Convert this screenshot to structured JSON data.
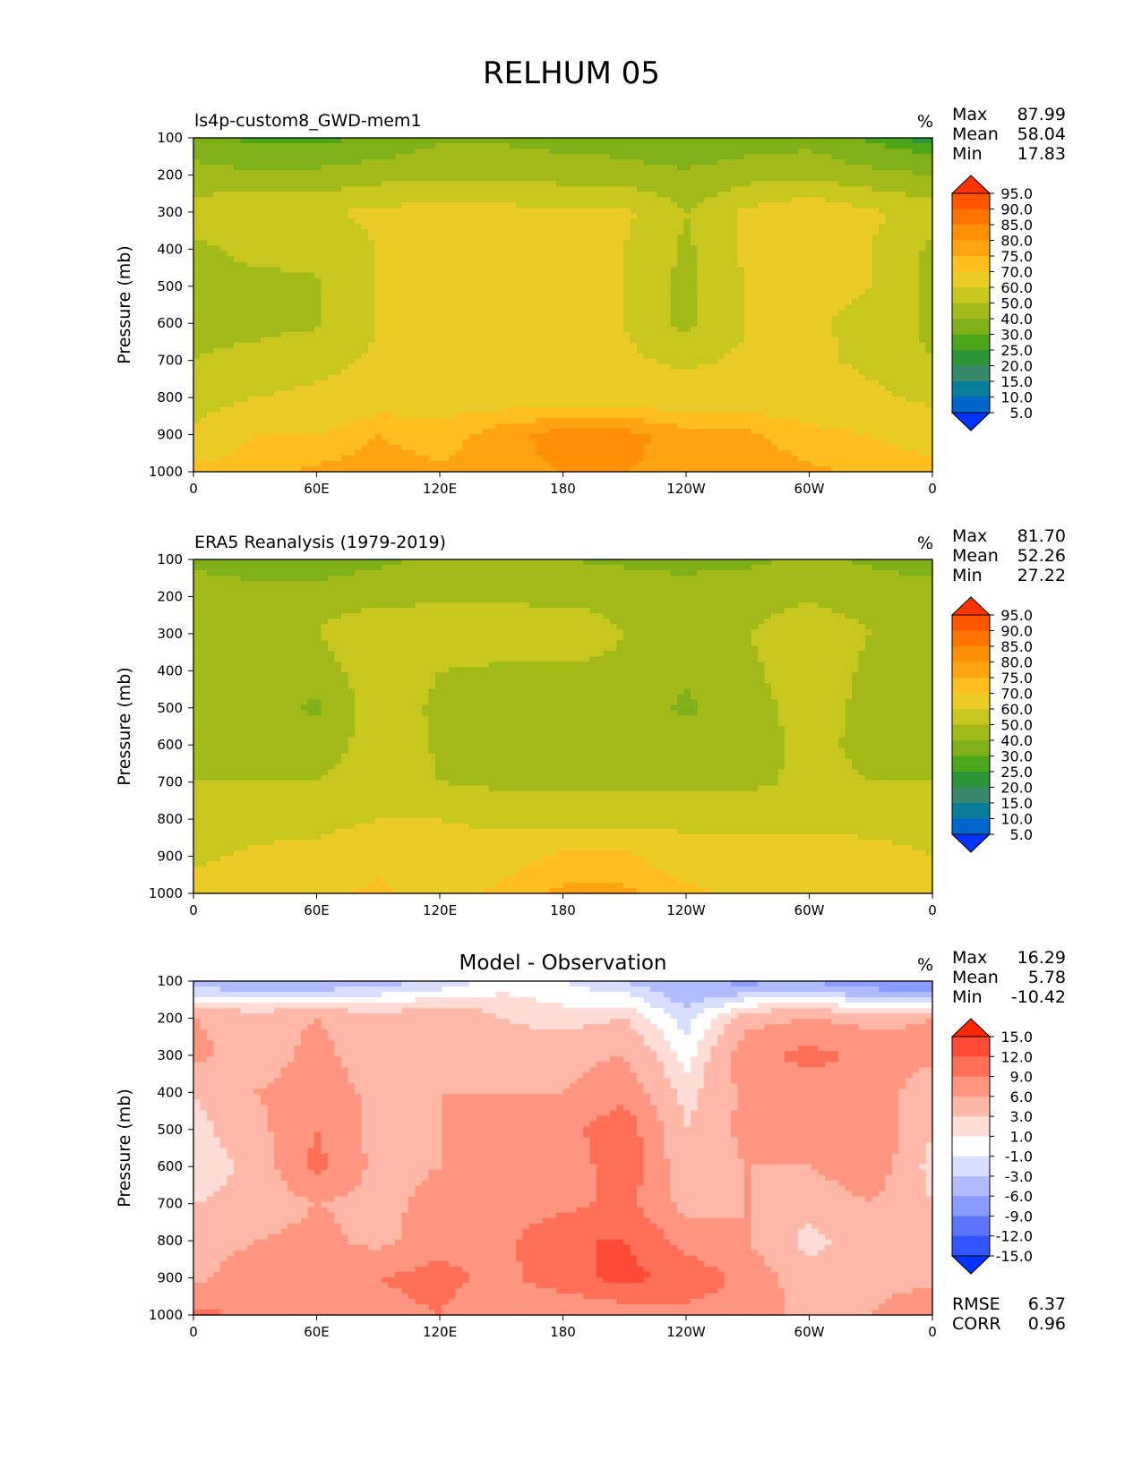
{
  "figure": {
    "title": "RELHUM 05",
    "ylabel": "Pressure (mb)",
    "units": "%"
  },
  "panels": [
    {
      "id": "model",
      "title": "ls4p-custom8_GWD-mem1",
      "stats": [
        {
          "label": "Max",
          "value": "87.99"
        },
        {
          "label": "Mean",
          "value": "58.04"
        },
        {
          "label": "Min",
          "value": "17.83"
        }
      ],
      "colorbar": "abs"
    },
    {
      "id": "obs",
      "title": "ERA5 Reanalysis (1979-2019)",
      "stats": [
        {
          "label": "Max",
          "value": "81.70"
        },
        {
          "label": "Mean",
          "value": "52.26"
        },
        {
          "label": "Min",
          "value": "27.22"
        }
      ],
      "colorbar": "abs"
    },
    {
      "id": "diff",
      "title": "Model - Observation",
      "stats": [
        {
          "label": "Max",
          "value": "16.29"
        },
        {
          "label": "Mean",
          "value": "5.78"
        },
        {
          "label": "Min",
          "value": "-10.42"
        }
      ],
      "extra_stats": [
        {
          "label": "RMSE",
          "value": "6.37"
        },
        {
          "label": "CORR",
          "value": "0.96"
        }
      ],
      "colorbar": "diff"
    }
  ],
  "colorbars": {
    "abs": {
      "labels": [
        "95.0",
        "90.0",
        "85.0",
        "80.0",
        "75.0",
        "70.0",
        "60.0",
        "50.0",
        "40.0",
        "30.0",
        "25.0",
        "20.0",
        "15.0",
        "10.0",
        "5.0"
      ],
      "colors": [
        "#ff3300",
        "#ff5500",
        "#ff7400",
        "#ff9005",
        "#ffa312",
        "#ffbf1f",
        "#ebcc26",
        "#c7c71f",
        "#a3bb19",
        "#7fb019",
        "#4da619",
        "#2e9438",
        "#38876b",
        "#087d99",
        "#0066cc",
        "#0033ff"
      ]
    },
    "diff": {
      "labels": [
        "15.0",
        "12.0",
        "9.0",
        "6.0",
        "3.0",
        "1.0",
        "-1.0",
        "-3.0",
        "-6.0",
        "-9.0",
        "-12.0",
        "-15.0"
      ],
      "colors": [
        "#ff2600",
        "#ff4a36",
        "#ff6e57",
        "#ff9480",
        "#ffb8a8",
        "#ffdcd5",
        "#ffffff",
        "#d8deff",
        "#b0bcff",
        "#8a9cff",
        "#5c74ff",
        "#3355ff",
        "#0033ff"
      ]
    }
  },
  "chart_data": [
    {
      "type": "heatmap",
      "title": "ls4p-custom8_GWD-mem1",
      "x_tick_labels": [
        "0",
        "60E",
        "120E",
        "180",
        "120W",
        "60W",
        "0"
      ],
      "y_tick_labels": [
        "100",
        "200",
        "300",
        "400",
        "500",
        "600",
        "700",
        "800",
        "900",
        "1000"
      ],
      "xlim": [
        0,
        360
      ],
      "ylim": [
        1000,
        100
      ],
      "x": [
        0,
        30,
        60,
        90,
        120,
        150,
        180,
        210,
        240,
        270,
        300,
        330,
        360
      ],
      "y": [
        100,
        200,
        300,
        400,
        500,
        600,
        700,
        800,
        900,
        1000
      ],
      "values": [
        [
          33,
          28,
          27,
          32,
          38,
          38,
          36,
          34,
          30,
          34,
          36,
          28,
          22
        ],
        [
          44,
          42,
          43,
          46,
          48,
          48,
          46,
          45,
          42,
          46,
          48,
          43,
          40
        ],
        [
          55,
          58,
          58,
          63,
          63,
          63,
          62,
          62,
          50,
          62,
          68,
          62,
          55
        ],
        [
          48,
          52,
          52,
          60,
          62,
          62,
          61,
          60,
          48,
          62,
          65,
          60,
          48
        ],
        [
          47,
          48,
          49,
          60,
          62,
          62,
          61,
          60,
          47,
          61,
          62,
          60,
          47
        ],
        [
          48,
          48,
          49,
          60,
          63,
          62,
          61,
          60,
          47,
          60,
          61,
          58,
          47
        ],
        [
          50,
          52,
          56,
          62,
          63,
          64,
          63,
          62,
          58,
          62,
          62,
          58,
          50
        ],
        [
          55,
          60,
          63,
          66,
          67,
          66,
          67,
          66,
          65,
          66,
          65,
          62,
          58
        ],
        [
          62,
          70,
          70,
          75,
          72,
          78,
          82,
          82,
          77,
          76,
          72,
          70,
          66
        ],
        [
          72,
          74,
          76,
          78,
          76,
          79,
          80,
          80,
          79,
          78,
          76,
          74,
          73
        ]
      ],
      "zlabel": "%"
    },
    {
      "type": "heatmap",
      "title": "ERA5 Reanalysis (1979-2019)",
      "x_tick_labels": [
        "0",
        "60E",
        "120E",
        "180",
        "120W",
        "60W",
        "0"
      ],
      "y_tick_labels": [
        "100",
        "200",
        "300",
        "400",
        "500",
        "600",
        "700",
        "800",
        "900",
        "1000"
      ],
      "xlim": [
        0,
        360
      ],
      "ylim": [
        1000,
        100
      ],
      "x": [
        0,
        30,
        60,
        90,
        120,
        150,
        180,
        210,
        240,
        270,
        300,
        330,
        360
      ],
      "y": [
        100,
        200,
        300,
        400,
        500,
        600,
        700,
        800,
        900,
        1000
      ],
      "values": [
        [
          38,
          34,
          33,
          38,
          42,
          42,
          40,
          38,
          36,
          38,
          42,
          38,
          34
        ],
        [
          45,
          45,
          46,
          47,
          48,
          48,
          47,
          47,
          46,
          47,
          49,
          47,
          46
        ],
        [
          50,
          50,
          50,
          58,
          58,
          58,
          58,
          50,
          50,
          50,
          55,
          50,
          50
        ],
        [
          48,
          47,
          45,
          57,
          50,
          48,
          48,
          48,
          42,
          48,
          56,
          48,
          47
        ],
        [
          48,
          47,
          38,
          56,
          48,
          48,
          48,
          47,
          38,
          47,
          53,
          48,
          47
        ],
        [
          48,
          47,
          45,
          55,
          49,
          48,
          48,
          47,
          45,
          47,
          52,
          48,
          47
        ],
        [
          50,
          50,
          50,
          55,
          50,
          48,
          47,
          47,
          47,
          48,
          52,
          50,
          50
        ],
        [
          55,
          56,
          57,
          60,
          60,
          58,
          57,
          57,
          57,
          57,
          57,
          56,
          55
        ],
        [
          58,
          62,
          63,
          67,
          62,
          66,
          72,
          72,
          65,
          66,
          65,
          64,
          60
        ],
        [
          65,
          66,
          67,
          72,
          66,
          72,
          76,
          76,
          72,
          68,
          70,
          66,
          65
        ]
      ],
      "zlabel": "%"
    },
    {
      "type": "heatmap",
      "title": "Model - Observation",
      "x_tick_labels": [
        "0",
        "60E",
        "120E",
        "180",
        "120W",
        "60W",
        "0"
      ],
      "y_tick_labels": [
        "100",
        "200",
        "300",
        "400",
        "500",
        "600",
        "700",
        "800",
        "900",
        "1000"
      ],
      "xlim": [
        0,
        360
      ],
      "ylim": [
        1000,
        100
      ],
      "x": [
        0,
        30,
        60,
        90,
        120,
        150,
        180,
        210,
        240,
        270,
        300,
        330,
        360
      ],
      "y": [
        100,
        200,
        300,
        400,
        500,
        600,
        700,
        800,
        900,
        1000
      ],
      "values": [
        [
          -5,
          -6,
          -6,
          -4,
          -3,
          0,
          -1,
          -3,
          -6,
          -7,
          -6,
          -9,
          -10
        ],
        [
          6,
          5,
          6,
          4,
          6,
          3,
          2,
          3,
          -2,
          5,
          6,
          5,
          6
        ],
        [
          7,
          4,
          7,
          4,
          5,
          4,
          5,
          6,
          0,
          8,
          10,
          8,
          7
        ],
        [
          3,
          6,
          8,
          5,
          6,
          6,
          6,
          8,
          2,
          7,
          7,
          9,
          3
        ],
        [
          2,
          5,
          9,
          5,
          6,
          6,
          8,
          11,
          3,
          7,
          6,
          9,
          3
        ],
        [
          1,
          4,
          10,
          5,
          6,
          6,
          7,
          11,
          4,
          6,
          6,
          8,
          2
        ],
        [
          3,
          4,
          6,
          5,
          7,
          7,
          8,
          10,
          5,
          6,
          4,
          6,
          3
        ],
        [
          3,
          6,
          7,
          5,
          8,
          8,
          12,
          12,
          8,
          6,
          2,
          5,
          3
        ],
        [
          5,
          9,
          7,
          9,
          10,
          8,
          11,
          13,
          11,
          8,
          4,
          5,
          5
        ],
        [
          10,
          8,
          8,
          8,
          9,
          6,
          6,
          7,
          8,
          8,
          5,
          6,
          9
        ]
      ],
      "zlabel": "%"
    }
  ]
}
